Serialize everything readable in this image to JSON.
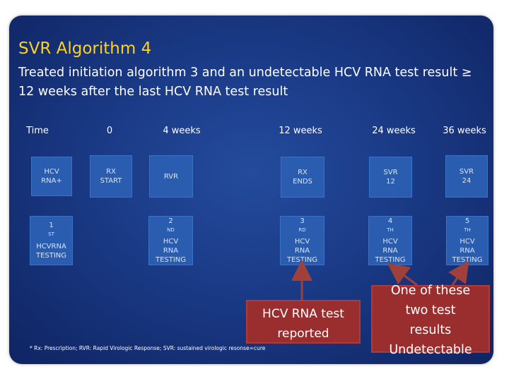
{
  "title": "SVR Algorithm 4",
  "subtitle": "Treated initiation algorithm 3 and an undetectable HCV RNA test result ≥ 12 weeks after the last HCV RNA test result",
  "timeline": [
    "Time",
    "0",
    "4 weeks",
    "12 weeks",
    "24 weeks",
    "36 weeks"
  ],
  "row1": [
    {
      "line1": "HCV",
      "line2": "RNA+"
    },
    {
      "line1": "RX",
      "line2": "START"
    },
    {
      "line1": "RVR",
      "line2": ""
    },
    {
      "line1": "RX",
      "line2": "ENDS"
    },
    {
      "line1": "SVR",
      "line2": "12"
    },
    {
      "line1": "SVR",
      "line2": "24"
    }
  ],
  "row2": [
    {
      "ord": "1",
      "sup": "ST",
      "rest": "",
      "line2": "HCVRNA",
      "line3": "TESTING"
    },
    {
      "ord": "2",
      "sup": "ND",
      "rest": "HCV",
      "line2": "RNA",
      "line3": "TESTING"
    },
    {
      "ord": "3",
      "sup": "RD",
      "rest": "HCV",
      "line2": "RNA",
      "line3": "TESTING"
    },
    {
      "ord": "4",
      "sup": "TH",
      "rest": "HCV",
      "line2": "RNA",
      "line3": "TESTING"
    },
    {
      "ord": "5",
      "sup": "TH",
      "rest": "HCV",
      "line2": "RNA",
      "line3": "TESTING"
    }
  ],
  "callout_left": {
    "line1": "HCV RNA test",
    "line2": "reported"
  },
  "callout_right": {
    "line1": "One of these",
    "line2": "two test",
    "line3": "results",
    "line4": "Undetectable"
  },
  "footnote": "* Rx: Prescription; RVR: Rapid Virologic Response; SVR: sustained virologic resonse=cure",
  "colors": {
    "background": "#1a3a86",
    "title": "#ffd21f",
    "box": "#2a5db0",
    "callout": "#9a2e2e",
    "arrow": "#a0403a"
  }
}
